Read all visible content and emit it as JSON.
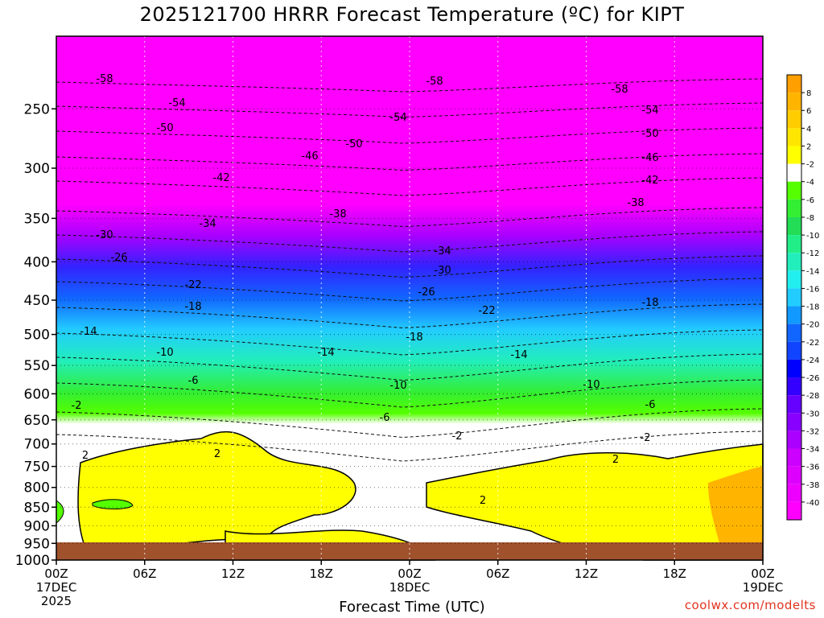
{
  "title": "2025121700 HRRR Forecast Temperature (ºC) for KIPT",
  "credit": "coolwx.com/modelts",
  "chart_data": {
    "type": "heatmap",
    "title": "2025121700 HRRR Forecast Temperature (ºC) for KIPT",
    "xlabel": "Forecast Time (UTC)",
    "ylabel": "",
    "y_scale": "log",
    "ylim": [
      1000,
      200
    ],
    "xlim_hours": [
      0,
      48
    ],
    "y_ticks": [
      "250",
      "300",
      "350",
      "400",
      "450",
      "500",
      "550",
      "600",
      "650",
      "700",
      "750",
      "800",
      "850",
      "900",
      "950",
      "1000"
    ],
    "x_ticks": [
      {
        "hour": 0,
        "l1": "00Z",
        "l2": "17DEC",
        "l3": "2025"
      },
      {
        "hour": 6,
        "l1": "06Z",
        "l2": "",
        "l3": ""
      },
      {
        "hour": 12,
        "l1": "12Z",
        "l2": "",
        "l3": ""
      },
      {
        "hour": 18,
        "l1": "18Z",
        "l2": "",
        "l3": ""
      },
      {
        "hour": 24,
        "l1": "00Z",
        "l2": "18DEC",
        "l3": ""
      },
      {
        "hour": 30,
        "l1": "06Z",
        "l2": "",
        "l3": ""
      },
      {
        "hour": 36,
        "l1": "12Z",
        "l2": "",
        "l3": ""
      },
      {
        "hour": 42,
        "l1": "18Z",
        "l2": "",
        "l3": ""
      },
      {
        "hour": 48,
        "l1": "00Z",
        "l2": "19DEC",
        "l3": ""
      }
    ],
    "grid": true,
    "colorbar": {
      "position": "right",
      "labels": [
        "8",
        "6",
        "4",
        "2",
        "-2",
        "-4",
        "-6",
        "-8",
        "-10",
        "-12",
        "-14",
        "-16",
        "-18",
        "-20",
        "-22",
        "-24",
        "-26",
        "-28",
        "-30",
        "-32",
        "-34",
        "-36",
        "-38",
        "-40"
      ],
      "colors": [
        "#ff9f00",
        "#ffb400",
        "#ffcd00",
        "#ffe600",
        "#ffff00",
        "#ffffff",
        "#55ff00",
        "#33ee33",
        "#22dd55",
        "#22ee88",
        "#22eebb",
        "#22eeee",
        "#22ccff",
        "#1199ff",
        "#1166ff",
        "#1144ff",
        "#0000ff",
        "#3300ff",
        "#6600ff",
        "#8800ff",
        "#aa00ff",
        "#cc00ff",
        "#dd00ff",
        "#ee00ff",
        "#ff00ff"
      ]
    },
    "ground_color": "#a0522d",
    "series": [
      {
        "values_c": [
          [
            0,
            1000,
            6
          ],
          [
            0,
            960,
            -1
          ],
          [
            0,
            900,
            1
          ],
          [
            0,
            850,
            -2
          ],
          [
            0,
            800,
            -1
          ],
          [
            0,
            750,
            -1
          ],
          [
            0,
            700,
            -1
          ],
          [
            0,
            650,
            -2
          ],
          [
            0,
            600,
            -7
          ],
          [
            0,
            550,
            -11
          ],
          [
            0,
            500,
            -15
          ],
          [
            0,
            450,
            -21
          ],
          [
            0,
            400,
            -27
          ],
          [
            0,
            350,
            -34
          ],
          [
            0,
            300,
            -46
          ],
          [
            0,
            250,
            -56
          ],
          [
            0,
            200,
            -60
          ]
        ]
      },
      {
        "values_c": [
          [
            12,
            1000,
            1
          ],
          [
            12,
            960,
            1
          ],
          [
            12,
            900,
            2
          ],
          [
            12,
            850,
            2
          ],
          [
            12,
            800,
            2
          ],
          [
            12,
            750,
            3
          ],
          [
            12,
            700,
            -1
          ],
          [
            12,
            650,
            -3
          ],
          [
            12,
            600,
            -7
          ],
          [
            12,
            550,
            -11
          ],
          [
            12,
            500,
            -17
          ],
          [
            12,
            450,
            -23
          ],
          [
            12,
            400,
            -29
          ],
          [
            12,
            350,
            -36
          ],
          [
            12,
            300,
            -47
          ],
          [
            12,
            250,
            -56
          ],
          [
            12,
            200,
            -60
          ]
        ]
      },
      {
        "values_c": [
          [
            24,
            1000,
            1
          ],
          [
            24,
            960,
            1
          ],
          [
            24,
            900,
            -1
          ],
          [
            24,
            850,
            -1
          ],
          [
            24,
            800,
            -1
          ],
          [
            24,
            750,
            -2
          ],
          [
            24,
            700,
            -4
          ],
          [
            24,
            650,
            -7
          ],
          [
            24,
            600,
            -11
          ],
          [
            24,
            550,
            -15
          ],
          [
            24,
            500,
            -19
          ],
          [
            24,
            450,
            -26
          ],
          [
            24,
            400,
            -33
          ],
          [
            24,
            350,
            -39
          ],
          [
            24,
            300,
            -48
          ],
          [
            24,
            250,
            -57
          ],
          [
            24,
            200,
            -60
          ]
        ]
      },
      {
        "values_c": [
          [
            36,
            1000,
            2
          ],
          [
            36,
            960,
            1
          ],
          [
            36,
            900,
            2
          ],
          [
            36,
            850,
            2
          ],
          [
            36,
            800,
            1
          ],
          [
            36,
            750,
            -1
          ],
          [
            36,
            700,
            -3
          ],
          [
            36,
            650,
            -6
          ],
          [
            36,
            600,
            -10
          ],
          [
            36,
            550,
            -14
          ],
          [
            36,
            500,
            -19
          ],
          [
            36,
            450,
            -25
          ],
          [
            36,
            400,
            -31
          ],
          [
            36,
            350,
            -38
          ],
          [
            36,
            300,
            -47
          ],
          [
            36,
            250,
            -56
          ],
          [
            36,
            200,
            -60
          ]
        ]
      },
      {
        "values_c": [
          [
            48,
            1000,
            7
          ],
          [
            48,
            960,
            6
          ],
          [
            48,
            900,
            4
          ],
          [
            48,
            850,
            3
          ],
          [
            48,
            800,
            2
          ],
          [
            48,
            750,
            0
          ],
          [
            48,
            700,
            -3
          ],
          [
            48,
            650,
            -6
          ],
          [
            48,
            600,
            -10
          ],
          [
            48,
            550,
            -14
          ],
          [
            48,
            500,
            -19
          ],
          [
            48,
            450,
            -25
          ],
          [
            48,
            400,
            -31
          ],
          [
            48,
            350,
            -38
          ],
          [
            48,
            300,
            -47
          ],
          [
            48,
            250,
            -56
          ],
          [
            48,
            200,
            -60
          ]
        ]
      }
    ],
    "contour_labels": [
      "-58",
      "-54",
      "-50",
      "-46",
      "-42",
      "-38",
      "-34",
      "-30",
      "-26",
      "-22",
      "-18",
      "-14",
      "-10",
      "-6",
      "-2",
      "2"
    ]
  }
}
